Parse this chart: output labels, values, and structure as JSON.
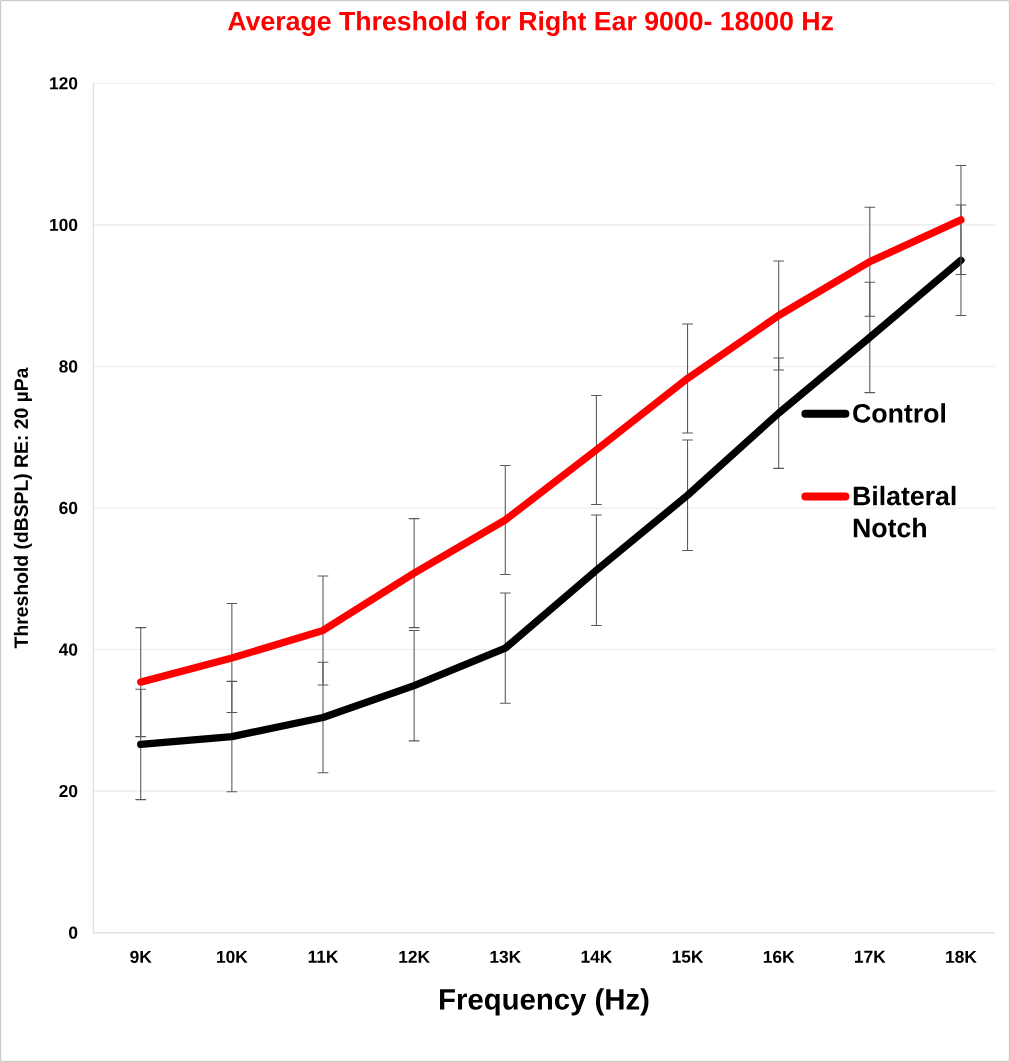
{
  "chart_data": {
    "type": "line",
    "title": "Average Threshold for Right Ear 9000- 18000 Hz",
    "xlabel": "Frequency (Hz)",
    "ylabel": "Threshold (dBSPL) RE: 20 µPa",
    "categories": [
      "9K",
      "10K",
      "11K",
      "12K",
      "13K",
      "14K",
      "15K",
      "16K",
      "17K",
      "18K"
    ],
    "series": [
      {
        "name": "Control",
        "color": "#000000",
        "values": [
          26.6,
          27.7,
          30.4,
          34.9,
          40.2,
          51.2,
          61.8,
          73.4,
          84.1,
          95.0
        ],
        "errors": [
          7.8,
          7.8,
          7.8,
          7.8,
          7.8,
          7.8,
          7.8,
          7.8,
          7.8,
          7.8
        ]
      },
      {
        "name": "Bilateral Notch",
        "color": "#ff0000",
        "values": [
          35.4,
          38.8,
          42.7,
          50.8,
          58.3,
          68.2,
          78.3,
          87.2,
          94.8,
          100.7
        ],
        "errors": [
          7.7,
          7.7,
          7.7,
          7.7,
          7.7,
          7.7,
          7.7,
          7.7,
          7.7,
          7.7
        ]
      }
    ],
    "ylim": [
      0,
      120
    ],
    "yticks": [
      0,
      20,
      40,
      60,
      80,
      100,
      120
    ],
    "grid": "y",
    "legend": "right",
    "marker": "none",
    "line_style": "solid"
  }
}
